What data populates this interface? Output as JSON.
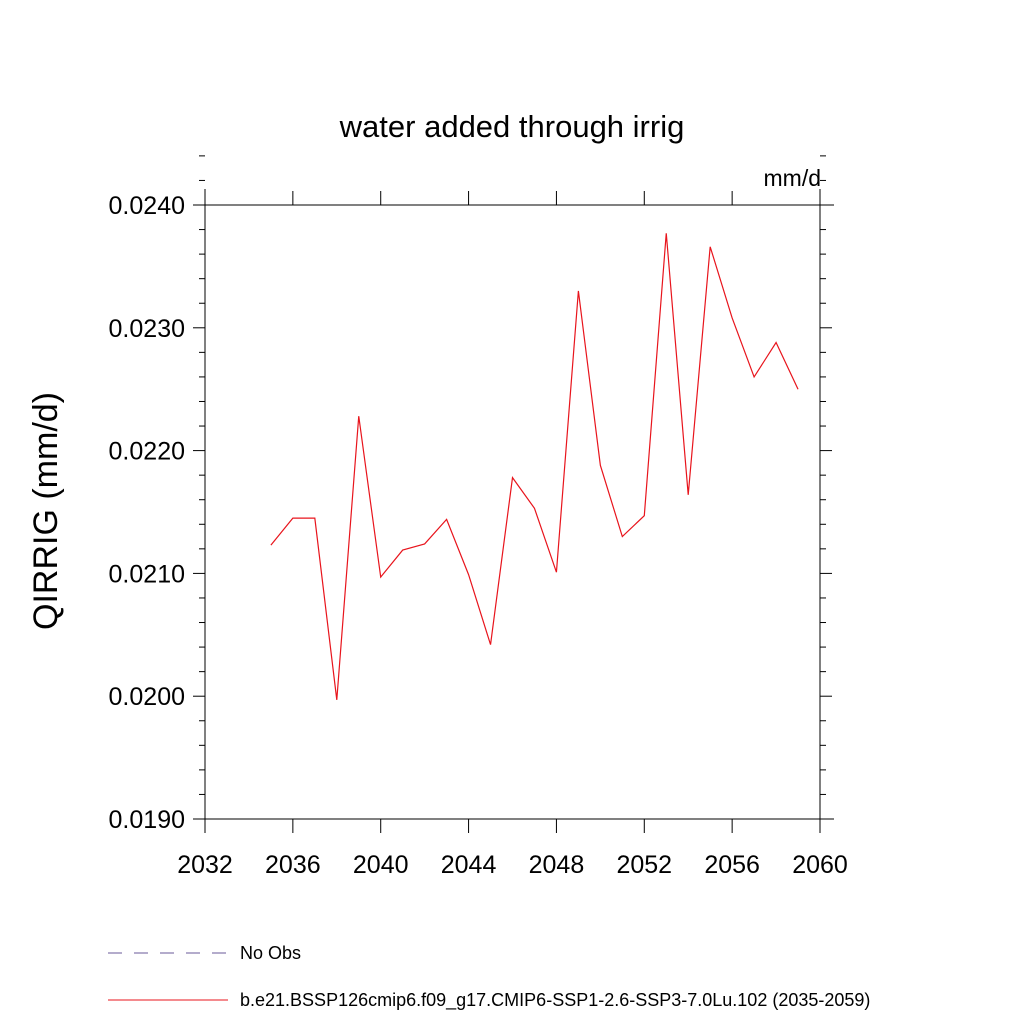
{
  "chart_data": {
    "type": "line",
    "title": "water added through irrig",
    "units": "mm/d",
    "ylabel": "QIRRIG  (mm/d)",
    "xlabel": "",
    "xlim": [
      2032,
      2060
    ],
    "ylim": [
      0.019,
      0.024
    ],
    "x_ticks": [
      2032,
      2036,
      2040,
      2044,
      2048,
      2052,
      2056,
      2060
    ],
    "y_ticks": [
      "0.0190",
      "0.0200",
      "0.0210",
      "0.0220",
      "0.0230",
      "0.0240"
    ],
    "grid": false,
    "legend_placement": "bottom",
    "series": [
      {
        "name": "b.e21.BSSP126cmip6.f09_g17.CMIP6-SSP1-2.6-SSP3-7.0Lu.102 (2035-2059)",
        "color": "#e8141c",
        "style": "solid",
        "x": [
          2035,
          2036,
          2037,
          2038,
          2039,
          2040,
          2041,
          2042,
          2043,
          2044,
          2045,
          2046,
          2047,
          2048,
          2049,
          2050,
          2051,
          2052,
          2053,
          2054,
          2055,
          2056,
          2057,
          2058,
          2059
        ],
        "y": [
          0.02123,
          0.02145,
          0.02145,
          0.01997,
          0.02228,
          0.02097,
          0.02119,
          0.02124,
          0.02144,
          0.02099,
          0.02042,
          0.02178,
          0.02153,
          0.02101,
          0.0233,
          0.02188,
          0.0213,
          0.02147,
          0.02377,
          0.02164,
          0.02366,
          0.02308,
          0.0226,
          0.02288,
          0.0225
        ]
      },
      {
        "name": "No Obs",
        "color": "#6a5a9a",
        "style": "dashed",
        "x": [],
        "y": []
      }
    ]
  }
}
